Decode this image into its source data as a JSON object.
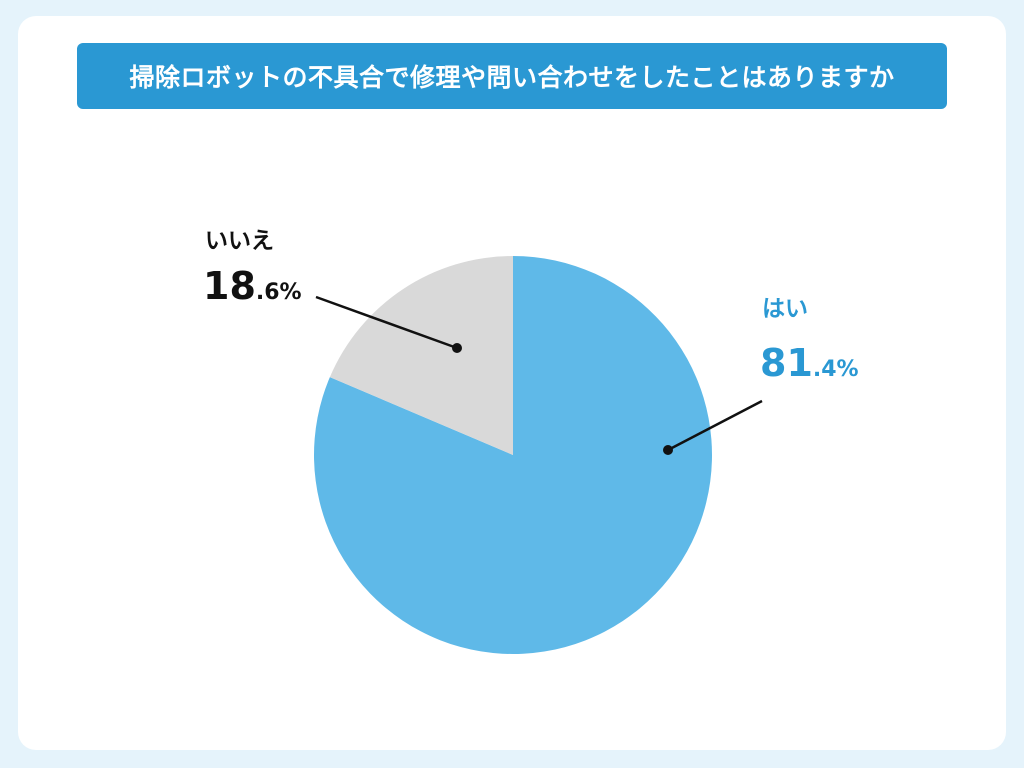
{
  "title": "掃除ロボットの不具合で修理や問い合わせをしたことはありますか",
  "colors": {
    "background": "#e5f3fb",
    "card": "#ffffff",
    "title_bar": "#2a98d3",
    "yes": "#5fb9e8",
    "no": "#d9d9d9",
    "yes_label": "#2a98d3",
    "no_label": "#111111",
    "leader": "#111111"
  },
  "chart_data": {
    "type": "pie",
    "title": "掃除ロボットの不具合で修理や問い合わせをしたことはありますか",
    "slices": [
      {
        "label": "はい",
        "value": 81.4,
        "value_int": "81",
        "value_dec": ".4%",
        "color": "#5fb9e8"
      },
      {
        "label": "いいえ",
        "value": 18.6,
        "value_int": "18",
        "value_dec": ".6%",
        "color": "#d9d9d9"
      }
    ],
    "start_angle": "12 o'clock",
    "direction": "clockwise"
  }
}
